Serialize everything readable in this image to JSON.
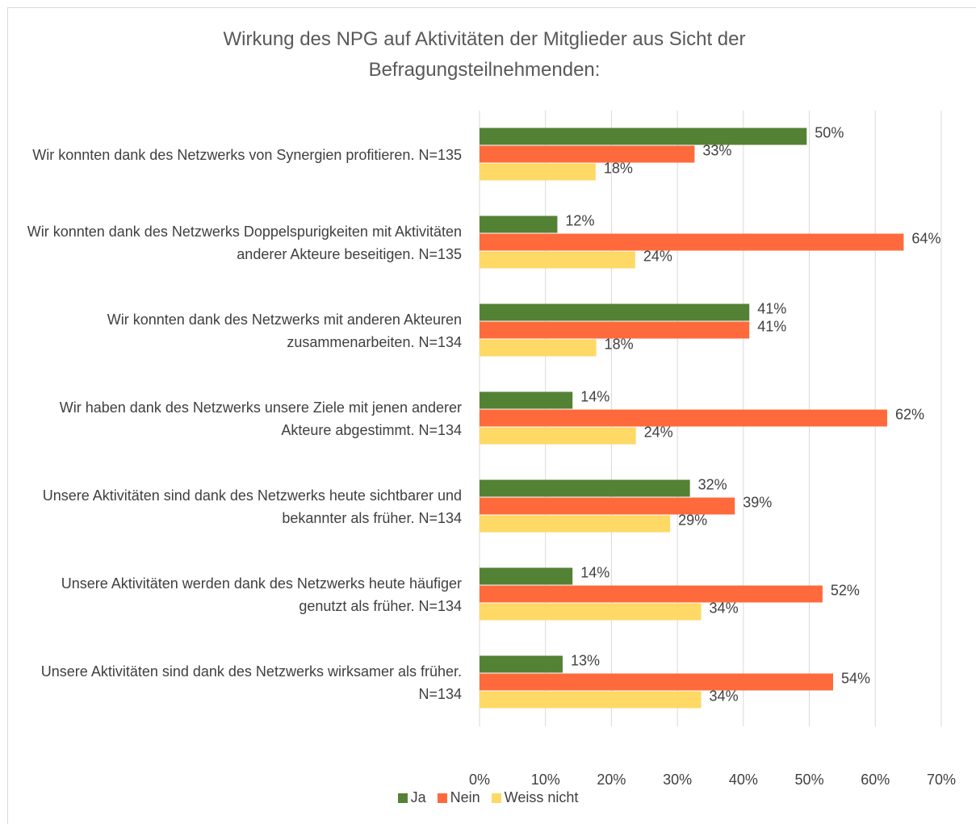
{
  "chart_data": {
    "type": "barh",
    "title": "Wirkung des NPG auf Aktivitäten der Mitglieder aus Sicht der Befragungsteilnehmenden:",
    "categories": [
      "Wir konnten dank des Netzwerks von Synergien profitieren. N=135",
      "Wir konnten dank des Netzwerks Doppelspurigkeiten mit Aktivitäten anderer Akteure beseitigen. N=135",
      "Wir konnten dank des Netzwerks mit anderen Akteuren zusammenarbeiten. N=134",
      "Wir haben dank des Netzwerks unsere Ziele mit jenen anderer Akteure abgestimmt. N=134",
      "Unsere Aktivitäten sind dank des Netzwerks heute sichtbarer und bekannter als früher. N=134",
      "Unsere Aktivitäten werden dank des Netzwerks heute häufiger genutzt als früher. N=134",
      "Unsere Aktivitäten sind dank des Netzwerks wirksamer als früher. N=134"
    ],
    "series": [
      {
        "name": "Ja",
        "color": "#548235",
        "values": [
          49.6,
          11.8,
          40.9,
          14.1,
          31.9,
          14.1,
          12.6
        ],
        "value_labels": [
          "50%",
          "12%",
          "41%",
          "14%",
          "32%",
          "14%",
          "13%"
        ]
      },
      {
        "name": "Nein",
        "color": "#ff6a3d",
        "values": [
          32.6,
          64.3,
          40.9,
          61.8,
          38.7,
          52.0,
          53.6
        ],
        "value_labels": [
          "33%",
          "64%",
          "41%",
          "62%",
          "39%",
          "52%",
          "54%"
        ]
      },
      {
        "name": "Weiss nicht",
        "color": "#ffd966",
        "values": [
          17.6,
          23.6,
          17.7,
          23.7,
          28.9,
          33.6,
          33.6
        ],
        "value_labels": [
          "18%",
          "24%",
          "18%",
          "24%",
          "29%",
          "34%",
          "34%"
        ]
      }
    ],
    "xlim": [
      0,
      70
    ],
    "xticks": [
      {
        "value": 0,
        "label": "0%"
      },
      {
        "value": 10,
        "label": "10%"
      },
      {
        "value": 20,
        "label": "20%"
      },
      {
        "value": 30,
        "label": "30%"
      },
      {
        "value": 40,
        "label": "40%"
      },
      {
        "value": 50,
        "label": "50%"
      },
      {
        "value": 60,
        "label": "60%"
      },
      {
        "value": 70,
        "label": "70%"
      }
    ],
    "grid": true,
    "legend": "bottom"
  }
}
